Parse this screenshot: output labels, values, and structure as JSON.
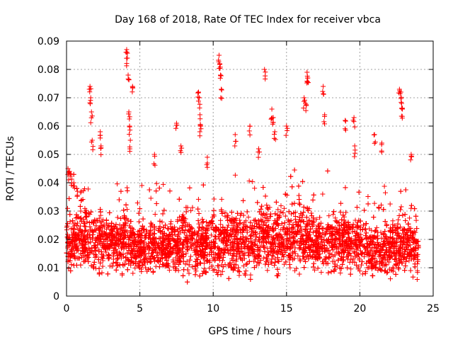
{
  "chart_data": {
    "type": "scatter",
    "title": "Day 168 of 2018, Rate Of TEC Index for receiver vbca",
    "xlabel": "GPS time / hours",
    "ylabel": "ROTI / TECUs",
    "xlim": [
      0,
      25
    ],
    "ylim": [
      0,
      0.09
    ],
    "xticks": [
      "0",
      "5",
      "10",
      "15",
      "20",
      "25"
    ],
    "yticks": [
      "0",
      "0.01",
      "0.02",
      "0.03",
      "0.04",
      "0.05",
      "0.06",
      "0.07",
      "0.08",
      "0.09"
    ],
    "grid": true,
    "marker": "+",
    "color": "#ff0000",
    "series": [
      {
        "name": "ROTI",
        "x": [
          0.1,
          0.2,
          0.3,
          0.5,
          0.7,
          1.0,
          1.6,
          1.65,
          1.7,
          1.75,
          2.3,
          2.35,
          4.1,
          4.15,
          4.2,
          4.25,
          4.3,
          4.35,
          4.5,
          6.0,
          7.5,
          7.8,
          9.0,
          9.05,
          9.1,
          9.15,
          9.6,
          10.4,
          10.45,
          10.5,
          10.55,
          11.5,
          12.5,
          13.1,
          13.5,
          14.0,
          14.1,
          14.2,
          15.0,
          16.2,
          16.3,
          16.4,
          16.45,
          17.5,
          17.6,
          19.0,
          19.6,
          19.65,
          21.0,
          21.5,
          22.7,
          22.8,
          22.85,
          22.9,
          23.5
        ],
        "y": [
          0.045,
          0.044,
          0.043,
          0.04,
          0.038,
          0.037,
          0.074,
          0.07,
          0.065,
          0.055,
          0.058,
          0.053,
          0.087,
          0.084,
          0.078,
          0.065,
          0.06,
          0.055,
          0.074,
          0.05,
          0.061,
          0.053,
          0.072,
          0.07,
          0.064,
          0.06,
          0.049,
          0.085,
          0.082,
          0.078,
          0.073,
          0.057,
          0.06,
          0.052,
          0.08,
          0.066,
          0.063,
          0.058,
          0.06,
          0.07,
          0.068,
          0.079,
          0.077,
          0.074,
          0.064,
          0.062,
          0.063,
          0.053,
          0.057,
          0.054,
          0.073,
          0.072,
          0.068,
          0.066,
          0.05
        ],
        "baseline_hours": [
          0,
          1,
          2,
          3,
          4,
          5,
          6,
          7,
          8,
          9,
          10,
          11,
          12,
          13,
          14,
          15,
          16,
          17,
          18,
          19,
          20,
          21,
          22,
          23,
          24
        ],
        "baseline_median": [
          0.018,
          0.02,
          0.019,
          0.018,
          0.02,
          0.017,
          0.017,
          0.017,
          0.02,
          0.018,
          0.019,
          0.02,
          0.018,
          0.02,
          0.021,
          0.019,
          0.023,
          0.019,
          0.018,
          0.02,
          0.018,
          0.016,
          0.017,
          0.018,
          0.015
        ],
        "baseline_spread": [
          0.008,
          0.01,
          0.009,
          0.009,
          0.01,
          0.008,
          0.007,
          0.008,
          0.01,
          0.009,
          0.009,
          0.01,
          0.009,
          0.01,
          0.01,
          0.009,
          0.011,
          0.009,
          0.009,
          0.01,
          0.009,
          0.008,
          0.008,
          0.009,
          0.007
        ]
      }
    ]
  }
}
